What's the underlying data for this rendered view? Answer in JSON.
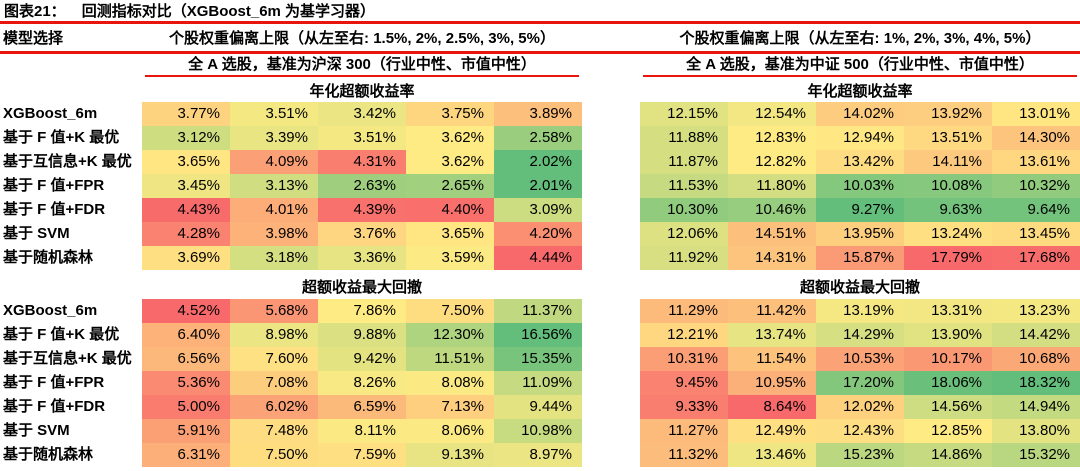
{
  "colors": {
    "rule_red": "#e8150d",
    "scale_red": "#F8696B",
    "scale_yellow": "#FFEB84",
    "scale_green": "#63BE7B"
  },
  "title": {
    "prefix": "图表21：",
    "text": "回测指标对比（XGBoost_6m 为基学习器）"
  },
  "header": {
    "model_col": "模型选择",
    "left_caption": "个股权重偏离上限（从左至右: 1.5%, 2%, 2.5%, 3%, 5%）",
    "right_caption": "个股权重偏离上限（从左至右: 1%, 2%, 3%, 4%, 5%）"
  },
  "banners": {
    "left": "全 A 选股，基准为沪深 300（行业中性、市值中性）",
    "right": "全 A 选股，基准为中证 500（行业中性、市值中性）"
  },
  "chart_data": {
    "type": "heatmap",
    "title": "回测指标对比（XGBoost_6m 为基学习器）",
    "unit": "%",
    "row_labels": [
      "XGBoost_6m",
      "基于 F 值+K 最优",
      "基于互信息+K 最优",
      "基于 F 值+FPR",
      "基于 F 值+FDR",
      "基于 SVM",
      "基于随机森林"
    ],
    "column_groups": [
      {
        "benchmark": "沪深300",
        "weight_caps": [
          "1.5%",
          "2%",
          "2.5%",
          "3%",
          "5%"
        ]
      },
      {
        "benchmark": "中证500",
        "weight_caps": [
          "1%",
          "2%",
          "3%",
          "4%",
          "5%"
        ]
      }
    ],
    "sections": [
      {
        "label": "年化超额收益率",
        "left": {
          "high_is": "red",
          "values": [
            [
              3.77,
              3.51,
              3.42,
              3.75,
              3.89
            ],
            [
              3.12,
              3.39,
              3.51,
              3.62,
              2.58
            ],
            [
              3.65,
              4.09,
              4.31,
              3.62,
              2.02
            ],
            [
              3.45,
              3.13,
              2.63,
              2.65,
              2.01
            ],
            [
              4.43,
              4.01,
              4.39,
              4.4,
              3.09
            ],
            [
              4.28,
              3.98,
              3.76,
              3.65,
              4.2
            ],
            [
              3.69,
              3.18,
              3.36,
              3.59,
              4.44
            ]
          ]
        },
        "right": {
          "high_is": "red",
          "values": [
            [
              12.15,
              12.54,
              14.02,
              13.92,
              13.01
            ],
            [
              11.88,
              12.83,
              12.94,
              13.51,
              14.3
            ],
            [
              11.87,
              12.82,
              13.42,
              14.11,
              13.61
            ],
            [
              11.53,
              11.8,
              10.03,
              10.08,
              10.32
            ],
            [
              10.3,
              10.46,
              9.27,
              9.63,
              9.64
            ],
            [
              12.06,
              14.51,
              13.95,
              13.24,
              13.45
            ],
            [
              11.92,
              14.31,
              15.87,
              17.79,
              17.68
            ]
          ]
        }
      },
      {
        "label": "超额收益最大回撤",
        "left": {
          "high_is": "green",
          "values": [
            [
              4.52,
              5.68,
              7.86,
              7.5,
              11.37
            ],
            [
              6.4,
              8.98,
              9.88,
              12.3,
              16.56
            ],
            [
              6.56,
              7.6,
              9.42,
              11.51,
              15.35
            ],
            [
              5.36,
              7.08,
              8.26,
              8.08,
              11.09
            ],
            [
              5.0,
              6.02,
              6.59,
              7.13,
              9.44
            ],
            [
              5.91,
              7.48,
              8.11,
              8.06,
              10.98
            ],
            [
              6.31,
              7.5,
              7.59,
              9.13,
              8.97
            ]
          ]
        },
        "right": {
          "high_is": "green",
          "values": [
            [
              11.29,
              11.42,
              13.19,
              13.31,
              13.23
            ],
            [
              12.21,
              13.74,
              14.29,
              13.9,
              14.42
            ],
            [
              10.31,
              11.54,
              10.53,
              10.17,
              10.68
            ],
            [
              9.45,
              10.95,
              17.2,
              18.06,
              18.32
            ],
            [
              9.33,
              8.64,
              12.02,
              14.56,
              14.94
            ],
            [
              11.27,
              12.49,
              12.43,
              12.85,
              13.8
            ],
            [
              11.32,
              13.46,
              15.23,
              14.86,
              15.32
            ]
          ]
        }
      }
    ]
  }
}
